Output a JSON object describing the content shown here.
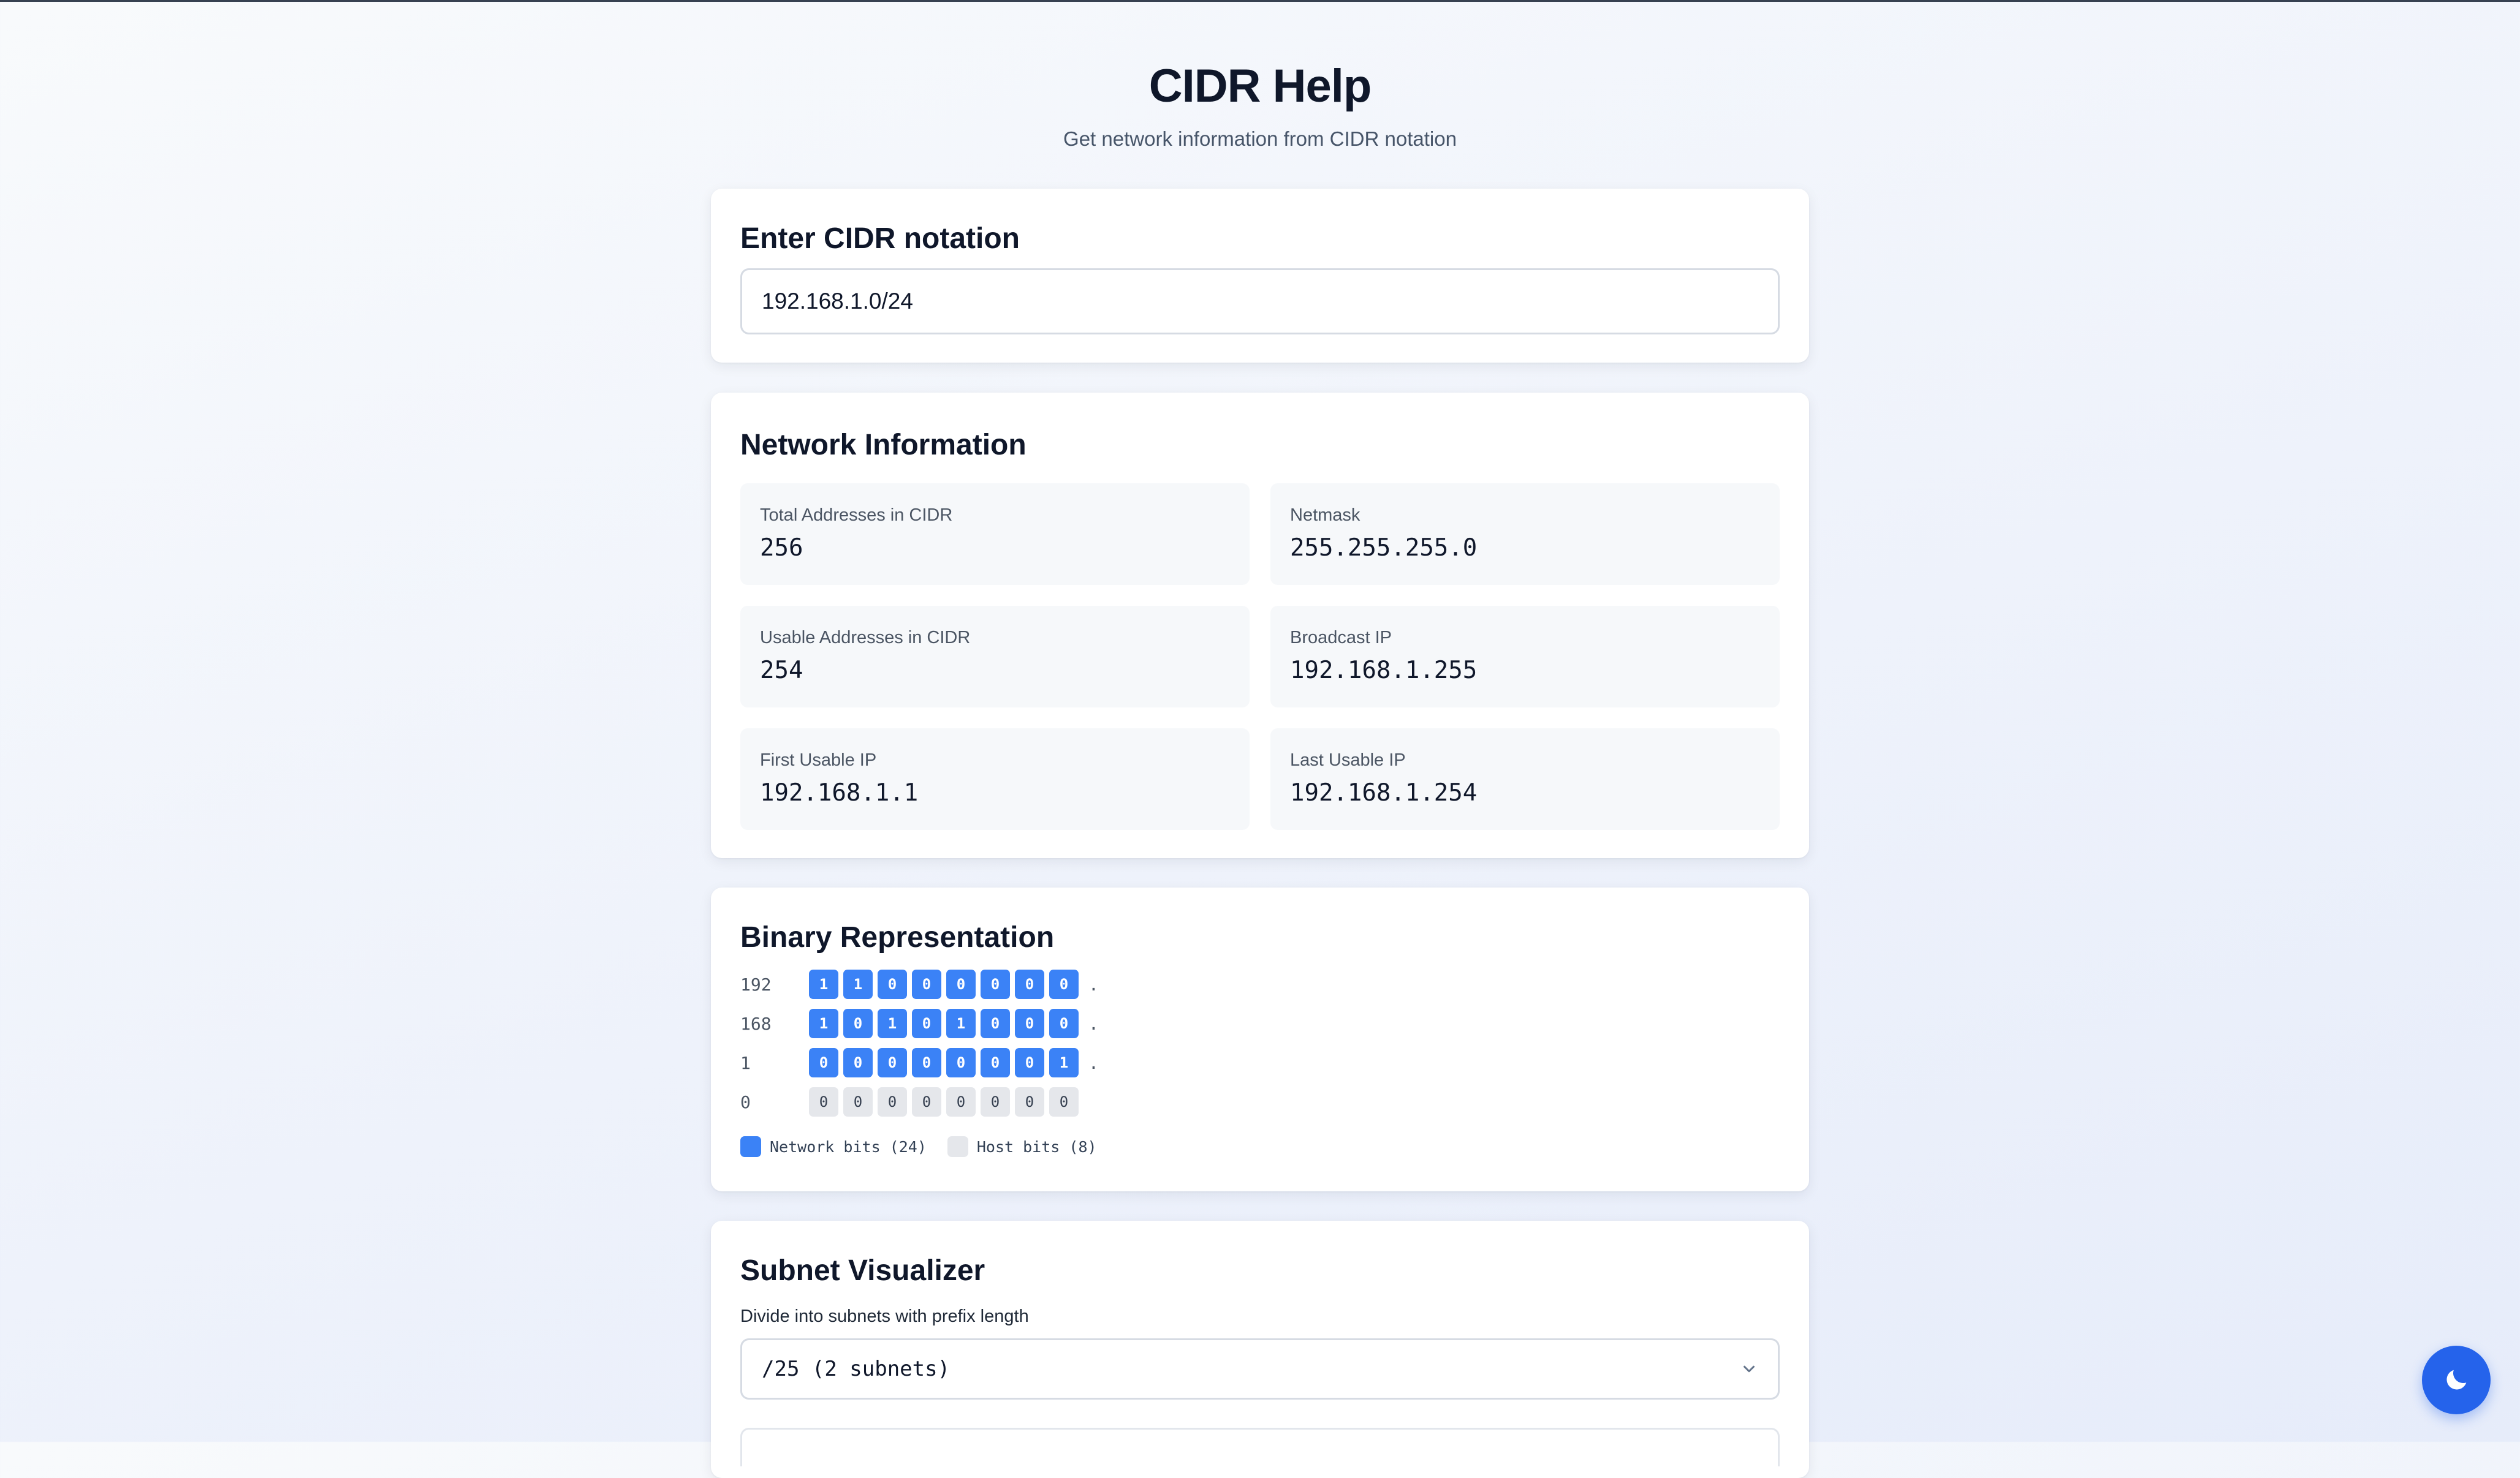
{
  "header": {
    "title": "CIDR Help",
    "subtitle": "Get network information from CIDR notation"
  },
  "input_card": {
    "title": "Enter CIDR notation",
    "value": "192.168.1.0/24"
  },
  "network_card": {
    "title": "Network Information",
    "items": [
      {
        "label": "Total Addresses in CIDR",
        "value": "256"
      },
      {
        "label": "Netmask",
        "value": "255.255.255.0"
      },
      {
        "label": "Usable Addresses in CIDR",
        "value": "254"
      },
      {
        "label": "Broadcast IP",
        "value": "192.168.1.255"
      },
      {
        "label": "First Usable IP",
        "value": "192.168.1.1"
      },
      {
        "label": "Last Usable IP",
        "value": "192.168.1.254"
      }
    ]
  },
  "binary_card": {
    "title": "Binary Representation",
    "separator": ".",
    "octets": [
      {
        "label": "192",
        "bits": [
          "1",
          "1",
          "0",
          "0",
          "0",
          "0",
          "0",
          "0"
        ],
        "network_bits": 8
      },
      {
        "label": "168",
        "bits": [
          "1",
          "0",
          "1",
          "0",
          "1",
          "0",
          "0",
          "0"
        ],
        "network_bits": 8
      },
      {
        "label": "1",
        "bits": [
          "0",
          "0",
          "0",
          "0",
          "0",
          "0",
          "0",
          "1"
        ],
        "network_bits": 8
      },
      {
        "label": "0",
        "bits": [
          "0",
          "0",
          "0",
          "0",
          "0",
          "0",
          "0",
          "0"
        ],
        "network_bits": 0
      }
    ],
    "legend": {
      "network": "Network bits (24)",
      "host": "Host bits (8)"
    }
  },
  "subnet_card": {
    "title": "Subnet Visualizer",
    "field_label": "Divide into subnets with prefix length",
    "selected": "/25 (2 subnets)"
  },
  "theme_toggle": {
    "icon": "moon-icon"
  },
  "colors": {
    "accent": "#2563eb",
    "network_bit": "#3b82f6",
    "host_bit": "#e5e7eb"
  }
}
